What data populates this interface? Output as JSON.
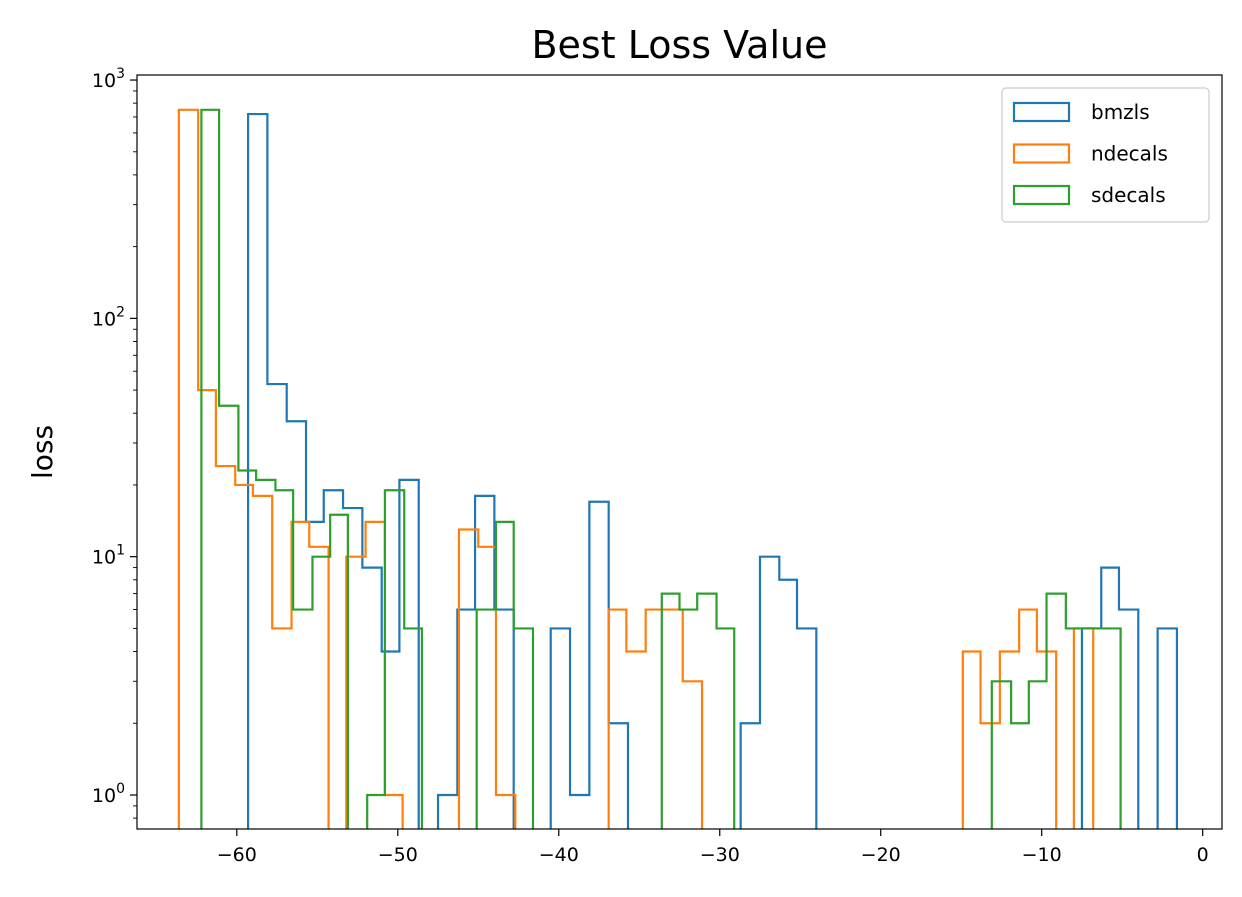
{
  "chart_data": {
    "type": "histogram",
    "title": "Best Loss Value",
    "xlabel": "",
    "ylabel": "loss",
    "yscale": "log",
    "xlim": [
      -66.2,
      1.2
    ],
    "ylim": [
      0.72,
      1050
    ],
    "xticks": [
      -60,
      -50,
      -40,
      -30,
      -20,
      -10,
      0
    ],
    "xtick_labels": [
      "−60",
      "−50",
      "−40",
      "−30",
      "−20",
      "−10",
      "0"
    ],
    "yticks": [
      {
        "base": "10",
        "exp": "0"
      },
      {
        "base": "10",
        "exp": "1"
      },
      {
        "base": "10",
        "exp": "2"
      },
      {
        "base": "10",
        "exp": "3"
      }
    ],
    "legend_position": "upper right",
    "grid": false,
    "series": [
      {
        "name": "bmzls",
        "color": "#1f77b4",
        "edges": [
          -59.3,
          -58.1,
          -56.9,
          -55.7,
          -54.6,
          -53.4,
          -52.2,
          -51.0,
          -49.9,
          -48.7,
          -47.5,
          -46.3,
          -45.2,
          -44.0,
          -42.8,
          -41.6,
          -40.5,
          -39.3,
          -38.1,
          -36.9,
          -35.7,
          -34.6,
          -33.4,
          -32.2,
          -31.0,
          -29.9,
          -28.7,
          -27.5,
          -26.3,
          -25.2,
          -24.0,
          -22.8,
          -21.6,
          -20.5,
          -19.3,
          -18.1,
          -16.9,
          -15.7,
          -14.6,
          -13.4,
          -12.2,
          -11.0,
          -9.9,
          -8.7,
          -7.5,
          -6.3,
          -5.2,
          -4.0,
          -2.8,
          -1.6
        ],
        "counts": [
          720,
          53,
          37,
          14,
          19,
          16,
          9,
          4,
          21,
          0,
          1,
          6,
          18,
          6,
          0,
          0,
          5,
          1,
          17,
          2,
          0,
          0,
          0,
          0,
          0,
          0,
          2,
          10,
          8,
          5,
          0,
          0,
          0,
          0,
          0,
          0,
          0,
          0,
          0,
          0,
          0,
          0,
          0,
          0,
          5,
          9,
          6,
          0,
          5
        ]
      },
      {
        "name": "ndecals",
        "color": "#ff7f0e",
        "edges": [
          -63.6,
          -62.4,
          -61.3,
          -60.1,
          -59.0,
          -57.8,
          -56.6,
          -55.5,
          -54.3,
          -53.2,
          -52.0,
          -50.8,
          -49.7,
          -48.5,
          -47.4,
          -46.2,
          -45.0,
          -43.9,
          -42.7,
          -41.6,
          -40.4,
          -39.3,
          -38.1,
          -36.9,
          -35.8,
          -34.6,
          -33.5,
          -32.3,
          -31.1,
          -30.0,
          -28.8,
          -27.7,
          -26.5,
          -25.3,
          -24.2,
          -23.0,
          -21.9,
          -20.7,
          -19.6,
          -18.4,
          -17.2,
          -16.1,
          -14.9,
          -13.8,
          -12.6,
          -11.4,
          -10.3,
          -9.1,
          -8.0,
          -6.8
        ],
        "counts": [
          750,
          50,
          24,
          20,
          18,
          5,
          14,
          11,
          0,
          10,
          14,
          1,
          0,
          0,
          0,
          13,
          11,
          1,
          0,
          0,
          0,
          0,
          0,
          6,
          4,
          6,
          6,
          3,
          0,
          0,
          0,
          0,
          0,
          0,
          0,
          0,
          0,
          0,
          0,
          0,
          0,
          0,
          4,
          2,
          4,
          6,
          4,
          0,
          5
        ]
      },
      {
        "name": "sdecals",
        "color": "#2ca02c",
        "edges": [
          -62.2,
          -61.1,
          -59.9,
          -58.8,
          -57.6,
          -56.5,
          -55.3,
          -54.2,
          -53.1,
          -51.9,
          -50.8,
          -49.6,
          -48.5,
          -47.4,
          -46.2,
          -45.1,
          -43.9,
          -42.8,
          -41.6,
          -40.5,
          -39.4,
          -38.2,
          -37.1,
          -35.9,
          -34.8,
          -33.6,
          -32.5,
          -31.4,
          -30.2,
          -29.1,
          -27.9,
          -26.8,
          -25.7,
          -24.5,
          -23.4,
          -22.2,
          -21.1,
          -19.9,
          -18.8,
          -17.7,
          -16.5,
          -15.4,
          -14.2,
          -13.1,
          -11.9,
          -10.8,
          -9.7,
          -8.5,
          -7.4,
          -6.2,
          -5.1
        ],
        "counts": [
          750,
          43,
          23,
          21,
          19,
          6,
          10,
          15,
          0,
          1,
          19,
          5,
          0,
          0,
          0,
          6,
          14,
          5,
          0,
          0,
          0,
          0,
          0,
          0,
          0,
          7,
          6,
          7,
          5,
          0,
          0,
          0,
          0,
          0,
          0,
          0,
          0,
          0,
          0,
          0,
          0,
          0,
          0,
          3,
          2,
          3,
          7,
          5,
          5,
          5
        ]
      }
    ]
  }
}
